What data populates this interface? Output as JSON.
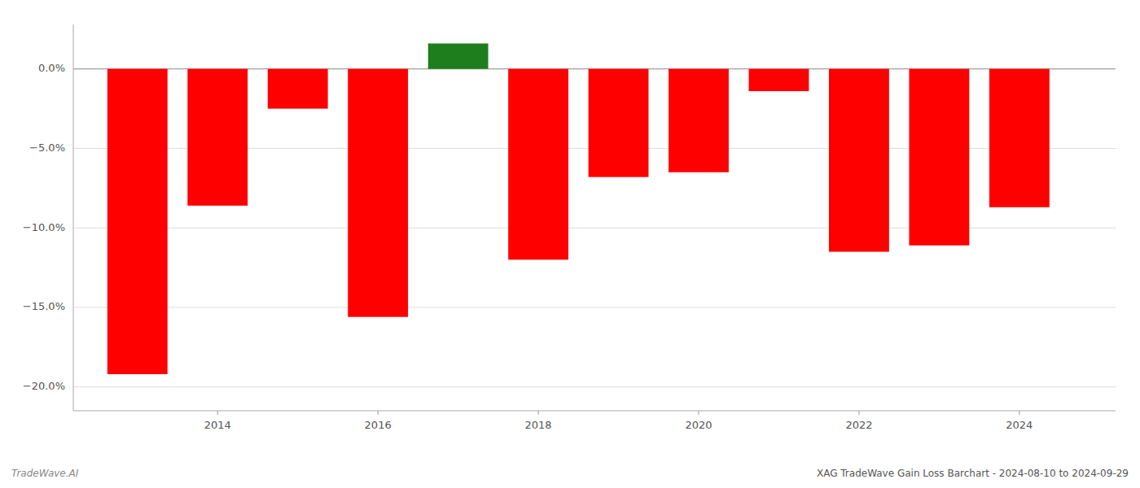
{
  "chart_data": {
    "type": "bar",
    "title": "XAG TradeWave Gain Loss Barchart - 2024-08-10 to 2024-09-29",
    "annotations": [
      "TradeWave.AI"
    ],
    "x": [
      2013,
      2014,
      2015,
      2016,
      2017,
      2018,
      2019,
      2020,
      2021,
      2022,
      2023,
      2024
    ],
    "values": [
      -0.192,
      -0.086,
      -0.025,
      -0.156,
      0.016,
      -0.12,
      -0.068,
      -0.065,
      -0.014,
      -0.115,
      -0.111,
      -0.087
    ],
    "colors": [
      "#ff0000",
      "#ff0000",
      "#ff0000",
      "#ff0000",
      "#1e7e1e",
      "#ff0000",
      "#ff0000",
      "#ff0000",
      "#ff0000",
      "#ff0000",
      "#ff0000",
      "#ff0000"
    ],
    "xlim": [
      2012.2,
      2025.2
    ],
    "xticks": [
      2014,
      2016,
      2018,
      2020,
      2022,
      2024
    ],
    "ylim": [
      -0.215,
      0.028
    ],
    "yticks": [
      {
        "value": 0.0,
        "label": "0.0%"
      },
      {
        "value": -0.05,
        "label": "−5.0%"
      },
      {
        "value": -0.1,
        "label": "−10.0%"
      },
      {
        "value": -0.15,
        "label": "−15.0%"
      },
      {
        "value": -0.2,
        "label": "−20.0%"
      }
    ],
    "grid": true
  }
}
